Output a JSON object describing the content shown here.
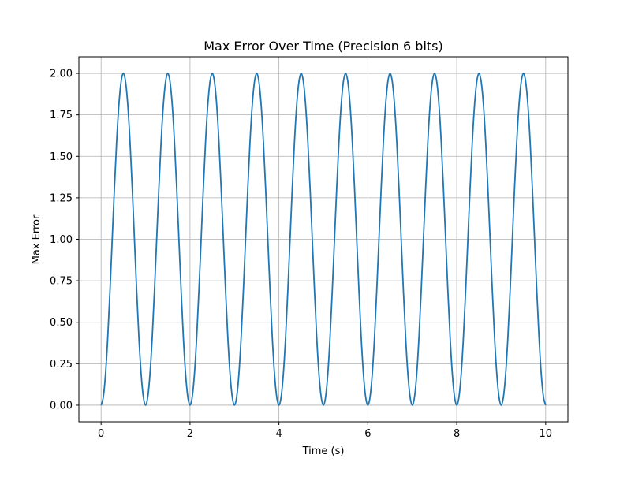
{
  "chart_data": {
    "type": "line",
    "title": "Max Error Over Time (Precision 6 bits)",
    "xlabel": "Time (s)",
    "ylabel": "Max Error",
    "xlim": [
      -0.5,
      10.5
    ],
    "ylim": [
      -0.1,
      2.1
    ],
    "xticks": [
      0,
      2,
      4,
      6,
      8,
      10
    ],
    "xtick_labels": [
      "0",
      "2",
      "4",
      "6",
      "8",
      "10"
    ],
    "yticks": [
      0.0,
      0.25,
      0.5,
      0.75,
      1.0,
      1.25,
      1.5,
      1.75,
      2.0
    ],
    "ytick_labels": [
      "0.00",
      "0.25",
      "0.50",
      "0.75",
      "1.00",
      "1.25",
      "1.50",
      "1.75",
      "2.00"
    ],
    "grid": true,
    "series": [
      {
        "color": "#1f77b4",
        "x": [
          0,
          0.05,
          0.1,
          0.15,
          0.2,
          0.25,
          0.3,
          0.35,
          0.4,
          0.45,
          0.5,
          0.55,
          0.6,
          0.65,
          0.7,
          0.75,
          0.8,
          0.85,
          0.9,
          0.95,
          1.0,
          1.05,
          1.1,
          1.15,
          1.2,
          1.25,
          1.3,
          1.35,
          1.4,
          1.45,
          1.5,
          1.55,
          1.6,
          1.65,
          1.7,
          1.75,
          1.8,
          1.85,
          1.9,
          1.95,
          2.0,
          2.05,
          2.1,
          2.15,
          2.2,
          2.25,
          2.3,
          2.35,
          2.4,
          2.45,
          2.5,
          2.55,
          2.6,
          2.65,
          2.7,
          2.75,
          2.8,
          2.85,
          2.9,
          2.95,
          3.0,
          3.05,
          3.1,
          3.15,
          3.2,
          3.25,
          3.3,
          3.35,
          3.4,
          3.45,
          3.5,
          3.55,
          3.6,
          3.65,
          3.7,
          3.75,
          3.8,
          3.85,
          3.9,
          3.95,
          4.0,
          4.05,
          4.1,
          4.15,
          4.2,
          4.25,
          4.3,
          4.35,
          4.4,
          4.45,
          4.5,
          4.55,
          4.6,
          4.65,
          4.7,
          4.75,
          4.8,
          4.85,
          4.9,
          4.95,
          5.0,
          5.05,
          5.1,
          5.15,
          5.2,
          5.25,
          5.3,
          5.35,
          5.4,
          5.45,
          5.5,
          5.55,
          5.6,
          5.65,
          5.7,
          5.75,
          5.8,
          5.85,
          5.9,
          5.95,
          6.0,
          6.05,
          6.1,
          6.15,
          6.2,
          6.25,
          6.3,
          6.35,
          6.4,
          6.45,
          6.5,
          6.55,
          6.6,
          6.65,
          6.7,
          6.75,
          6.8,
          6.85,
          6.9,
          6.95,
          7.0,
          7.05,
          7.1,
          7.15,
          7.2,
          7.25,
          7.3,
          7.35,
          7.4,
          7.45,
          7.5,
          7.55,
          7.6,
          7.65,
          7.7,
          7.75,
          7.8,
          7.85,
          7.9,
          7.95,
          8.0,
          8.05,
          8.1,
          8.15,
          8.2,
          8.25,
          8.3,
          8.35,
          8.4,
          8.45,
          8.5,
          8.55,
          8.6,
          8.65,
          8.7,
          8.75,
          8.8,
          8.85,
          8.9,
          8.95,
          9.0,
          9.05,
          9.1,
          9.15,
          9.2,
          9.25,
          9.3,
          9.35,
          9.4,
          9.45,
          9.5,
          9.55,
          9.6,
          9.65,
          9.7,
          9.75,
          9.8,
          9.85,
          9.9,
          9.95,
          10.0
        ],
        "y": [
          0.0,
          0.05,
          0.19,
          0.41,
          0.69,
          1.0,
          1.31,
          1.59,
          1.81,
          1.95,
          2.0,
          1.95,
          1.81,
          1.59,
          1.31,
          1.0,
          0.69,
          0.41,
          0.19,
          0.05,
          0.0,
          0.05,
          0.19,
          0.41,
          0.69,
          1.0,
          1.31,
          1.59,
          1.81,
          1.95,
          2.0,
          1.95,
          1.81,
          1.59,
          1.31,
          1.0,
          0.69,
          0.41,
          0.19,
          0.05,
          0.0,
          0.05,
          0.19,
          0.41,
          0.69,
          1.0,
          1.31,
          1.59,
          1.81,
          1.95,
          2.0,
          1.95,
          1.81,
          1.59,
          1.31,
          1.0,
          0.69,
          0.41,
          0.19,
          0.05,
          0.0,
          0.05,
          0.19,
          0.41,
          0.69,
          1.0,
          1.31,
          1.59,
          1.81,
          1.95,
          2.0,
          1.95,
          1.81,
          1.59,
          1.31,
          1.0,
          0.69,
          0.41,
          0.19,
          0.05,
          0.0,
          0.05,
          0.19,
          0.41,
          0.69,
          1.0,
          1.31,
          1.59,
          1.81,
          1.95,
          2.0,
          1.95,
          1.81,
          1.59,
          1.31,
          1.0,
          0.69,
          0.41,
          0.19,
          0.05,
          0.0,
          0.05,
          0.19,
          0.41,
          0.69,
          1.0,
          1.31,
          1.59,
          1.81,
          1.95,
          2.0,
          1.95,
          1.81,
          1.59,
          1.31,
          1.0,
          0.69,
          0.41,
          0.19,
          0.05,
          0.0,
          0.05,
          0.19,
          0.41,
          0.69,
          1.0,
          1.31,
          1.59,
          1.81,
          1.95,
          2.0,
          1.95,
          1.81,
          1.59,
          1.31,
          1.0,
          0.69,
          0.41,
          0.19,
          0.05,
          0.0,
          0.05,
          0.19,
          0.41,
          0.69,
          1.0,
          1.31,
          1.59,
          1.81,
          1.95,
          2.0,
          1.95,
          1.81,
          1.59,
          1.31,
          1.0,
          0.69,
          0.41,
          0.19,
          0.05,
          0.0,
          0.05,
          0.19,
          0.41,
          0.69,
          1.0,
          1.31,
          1.59,
          1.81,
          1.95,
          2.0,
          1.95,
          1.81,
          1.59,
          1.31,
          1.0,
          0.69,
          0.41,
          0.19,
          0.05,
          0.0,
          0.05,
          0.19,
          0.41,
          0.69,
          1.0,
          1.31,
          1.59,
          1.81,
          1.95,
          2.0,
          1.95,
          1.81,
          1.59,
          1.31,
          1.0,
          0.69,
          0.41,
          0.19,
          0.05,
          0.0
        ]
      }
    ]
  },
  "colors": {
    "grid": "#b0b0b0",
    "axes": "#000000",
    "line": "#1f77b4"
  }
}
